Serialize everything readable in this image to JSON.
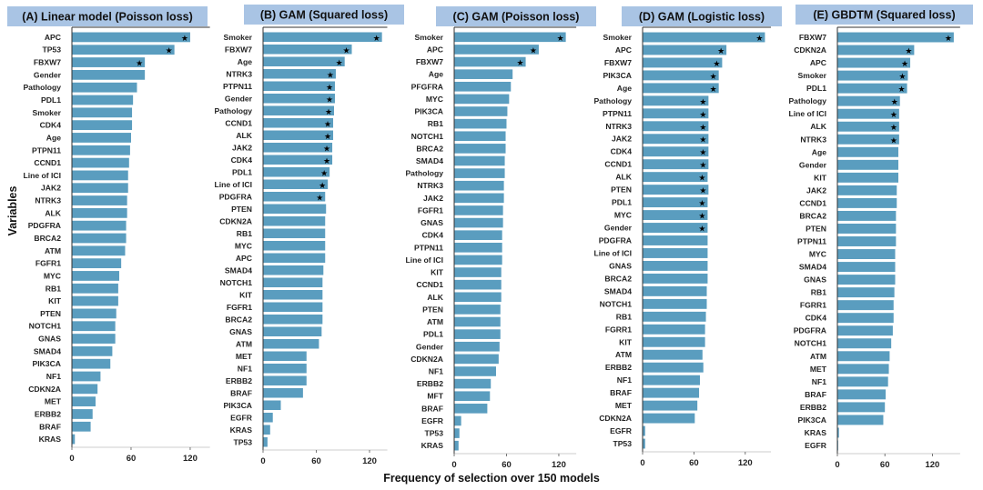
{
  "chart_data": {
    "type": "bar",
    "xlabel": "Frequency of selection over 150 models",
    "ylabel": "Variables",
    "colors": {
      "bar": "#5a9dbf",
      "title_bg": "#a9c4e4",
      "star": "#000000"
    },
    "panels": [
      {
        "title": "(A) Linear model (Poisson loss)",
        "xlim": [
          0,
          140
        ],
        "xticks": [
          0,
          60,
          120
        ],
        "categories": [
          "APC",
          "TP53",
          "FBXW7",
          "Gender",
          "Pathology",
          "PDL1",
          "Smoker",
          "CDK4",
          "Age",
          "PTPN11",
          "CCND1",
          "Line of ICI",
          "JAK2",
          "NTRK3",
          "ALK",
          "PDGFRA",
          "BRCA2",
          "ATM",
          "FGFR1",
          "MYC",
          "RB1",
          "KIT",
          "PTEN",
          "NOTCH1",
          "GNAS",
          "SMAD4",
          "PIK3CA",
          "NF1",
          "CDKN2A",
          "MET",
          "ERBB2",
          "BRAF",
          "KRAS"
        ],
        "values": [
          120,
          104,
          74,
          74,
          66,
          62,
          61,
          61,
          60,
          59,
          58,
          57,
          57,
          56,
          56,
          55,
          55,
          54,
          50,
          48,
          47,
          47,
          45,
          44,
          44,
          41,
          39,
          29,
          26,
          24,
          21,
          19,
          3
        ],
        "significant": [
          true,
          true,
          true,
          false,
          false,
          false,
          false,
          false,
          false,
          false,
          false,
          false,
          false,
          false,
          false,
          false,
          false,
          false,
          false,
          false,
          false,
          false,
          false,
          false,
          false,
          false,
          false,
          false,
          false,
          false,
          false,
          false,
          false
        ]
      },
      {
        "title": "(B) GAM (Squared loss)",
        "xlim": [
          0,
          140
        ],
        "xticks": [
          0,
          60,
          120
        ],
        "categories": [
          "Smoker",
          "FBXW7",
          "Age",
          "NTRK3",
          "PTPN11",
          "Gender",
          "Pathology",
          "CCND1",
          "ALK",
          "JAK2",
          "CDK4",
          "PDL1",
          "Line of ICI",
          "PDGFRA",
          "PTEN",
          "CDKN2A",
          "RB1",
          "MYC",
          "APC",
          "SMAD4",
          "NOTCH1",
          "KIT",
          "FGFR1",
          "BRCA2",
          "GNAS",
          "ATM",
          "MET",
          "NF1",
          "ERBB2",
          "BRAF",
          "PIK3CA",
          "EGFR",
          "KRAS",
          "TP53"
        ],
        "values": [
          134,
          100,
          92,
          82,
          81,
          81,
          80,
          79,
          79,
          78,
          78,
          75,
          73,
          70,
          71,
          70,
          70,
          70,
          70,
          68,
          67,
          67,
          67,
          67,
          66,
          63,
          49,
          49,
          49,
          45,
          20,
          11,
          8,
          5
        ],
        "significant": [
          true,
          true,
          true,
          true,
          true,
          true,
          true,
          true,
          true,
          true,
          true,
          true,
          true,
          true,
          false,
          false,
          false,
          false,
          false,
          false,
          false,
          false,
          false,
          false,
          false,
          false,
          false,
          false,
          false,
          false,
          false,
          false,
          false,
          false
        ]
      },
      {
        "title": "(C) GAM (Poisson loss)",
        "xlim": [
          0,
          140
        ],
        "xticks": [
          0,
          60,
          120
        ],
        "categories": [
          "Smoker",
          "APC",
          "FBXW7",
          "Age",
          "PFGFRA",
          "MYC",
          "PIK3CA",
          "RB1",
          "NOTCH1",
          "BRCA2",
          "SMAD4",
          "Pathology",
          "NTRK3",
          "JAK2",
          "FGFR1",
          "GNAS",
          "CDK4",
          "PTPN11",
          "Line of ICI",
          "KIT",
          "CCND1",
          "ALK",
          "PTEN",
          "ATM",
          "PDL1",
          "Gender",
          "CDKN2A",
          "NF1",
          "ERBB2",
          "MFT",
          "BRAF",
          "EGFR",
          "TP53",
          "KRAS"
        ],
        "values": [
          128,
          97,
          82,
          67,
          65,
          63,
          61,
          60,
          59,
          59,
          58,
          58,
          57,
          57,
          56,
          56,
          55,
          55,
          55,
          54,
          54,
          54,
          53,
          53,
          53,
          52,
          51,
          48,
          42,
          41,
          38,
          8,
          6,
          5
        ],
        "significant": [
          true,
          true,
          true,
          false,
          false,
          false,
          false,
          false,
          false,
          false,
          false,
          false,
          false,
          false,
          false,
          false,
          false,
          false,
          false,
          false,
          false,
          false,
          false,
          false,
          false,
          false,
          false,
          false,
          false,
          false,
          false,
          false,
          false,
          false
        ]
      },
      {
        "title": "(D) GAM (Logistic loss)",
        "xlim": [
          0,
          150
        ],
        "xticks": [
          0,
          60,
          120
        ],
        "categories": [
          "Smoker",
          "APC",
          "FBXW7",
          "PIK3CA",
          "Age",
          "Pathology",
          "PTPN11",
          "NTRK3",
          "JAK2",
          "CDK4",
          "CCND1",
          "ALK",
          "PTEN",
          "PDL1",
          "MYC",
          "Gender",
          "PDGFRA",
          "Line of ICI",
          "GNAS",
          "BRCA2",
          "SMAD4",
          "NOTCH1",
          "RB1",
          "FGRR1",
          "KIT",
          "ATM",
          "ERBB2",
          "NF1",
          "BRAF",
          "MET",
          "CDKN2A",
          "EGFR",
          "TP53"
        ],
        "values": [
          143,
          98,
          93,
          89,
          89,
          77,
          77,
          77,
          77,
          77,
          77,
          76,
          77,
          76,
          76,
          76,
          76,
          76,
          76,
          76,
          75,
          75,
          74,
          73,
          73,
          70,
          71,
          67,
          66,
          64,
          61,
          3,
          3
        ],
        "significant": [
          true,
          true,
          true,
          true,
          true,
          true,
          true,
          true,
          true,
          true,
          true,
          true,
          true,
          true,
          true,
          true,
          false,
          false,
          false,
          false,
          false,
          false,
          false,
          false,
          false,
          false,
          false,
          false,
          false,
          false,
          false,
          false,
          false
        ]
      },
      {
        "title": "(E) GBDTM (Squared loss)",
        "xlim": [
          0,
          155
        ],
        "xticks": [
          0,
          60,
          120
        ],
        "categories": [
          "FBXW7",
          "CDKN2A",
          "APC",
          "Smoker",
          "PDL1",
          "Pathology",
          "Line of ICI",
          "ALK",
          "NTRK3",
          "Age",
          "Gender",
          "KIT",
          "JAK2",
          "CCND1",
          "BRCA2",
          "PTEN",
          "PTPN11",
          "MYC",
          "SMAD4",
          "GNAS",
          "RB1",
          "FGRR1",
          "CDK4",
          "PDGFRA",
          "NOTCH1",
          "ATM",
          "MET",
          "NF1",
          "BRAF",
          "ERBB2",
          "PIK3CA",
          "KRAS",
          "EGFR"
        ],
        "values": [
          147,
          97,
          92,
          89,
          88,
          79,
          78,
          78,
          78,
          77,
          77,
          77,
          75,
          75,
          74,
          74,
          74,
          73,
          73,
          73,
          72,
          71,
          71,
          70,
          68,
          66,
          65,
          64,
          61,
          60,
          58,
          2,
          1
        ],
        "significant": [
          true,
          true,
          true,
          true,
          true,
          true,
          true,
          true,
          true,
          false,
          false,
          false,
          false,
          false,
          false,
          false,
          false,
          false,
          false,
          false,
          false,
          false,
          false,
          false,
          false,
          false,
          false,
          false,
          false,
          false,
          false,
          false,
          false
        ]
      }
    ]
  }
}
